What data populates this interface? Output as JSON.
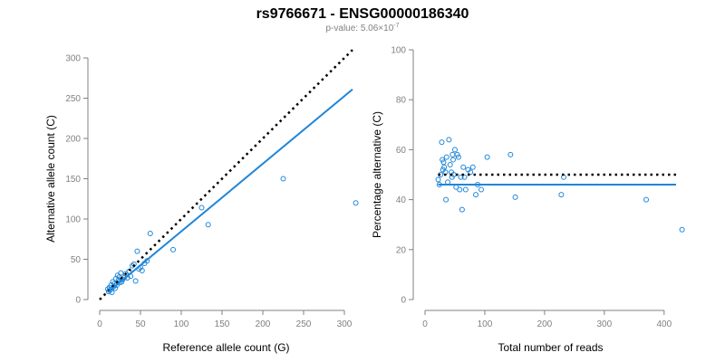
{
  "title": "rs9766671 - ENSG00000186340",
  "subtitle": {
    "prefix": "p-value: 5.06×10",
    "exponent": "-7"
  },
  "colors": {
    "points": "#1f86d9",
    "fit": "#1f86d9",
    "reference": "#000000",
    "axis": "#808080"
  },
  "chart_data": [
    {
      "type": "scatter",
      "xlabel": "Reference allele count (G)",
      "ylabel": "Alternative allele count (C)",
      "xlim": [
        0,
        310
      ],
      "ylim": [
        0,
        300
      ],
      "xticks": [
        0,
        50,
        100,
        150,
        200,
        250,
        300
      ],
      "yticks": [
        0,
        50,
        100,
        150,
        200,
        250,
        300
      ],
      "grid": false,
      "points": [
        [
          10,
          13
        ],
        [
          11,
          10
        ],
        [
          12,
          15
        ],
        [
          13,
          12
        ],
        [
          14,
          18
        ],
        [
          15,
          9
        ],
        [
          16,
          22
        ],
        [
          17,
          16
        ],
        [
          18,
          20
        ],
        [
          19,
          14
        ],
        [
          20,
          26
        ],
        [
          21,
          18
        ],
        [
          22,
          30
        ],
        [
          23,
          24
        ],
        [
          24,
          28
        ],
        [
          25,
          21
        ],
        [
          26,
          33
        ],
        [
          27,
          22
        ],
        [
          28,
          25
        ],
        [
          30,
          27
        ],
        [
          32,
          32
        ],
        [
          34,
          27
        ],
        [
          36,
          35
        ],
        [
          38,
          29
        ],
        [
          40,
          42
        ],
        [
          42,
          44
        ],
        [
          44,
          23
        ],
        [
          46,
          60
        ],
        [
          48,
          38
        ],
        [
          50,
          40
        ],
        [
          52,
          36
        ],
        [
          55,
          45
        ],
        [
          58,
          48
        ],
        [
          62,
          82
        ],
        [
          90,
          62
        ],
        [
          125,
          114
        ],
        [
          133,
          93
        ],
        [
          225,
          150
        ],
        [
          314,
          120
        ]
      ],
      "reference_line": {
        "from": [
          0,
          0
        ],
        "to": [
          310,
          310
        ],
        "style": "dotted"
      },
      "fit_line": {
        "from": [
          10,
          9
        ],
        "to": [
          310,
          261
        ],
        "style": "solid"
      }
    },
    {
      "type": "scatter",
      "xlabel": "Total number of reads",
      "ylabel": "Percentage alternative (C)",
      "xlim": [
        0,
        420
      ],
      "ylim": [
        0,
        100
      ],
      "xticks": [
        0,
        100,
        200,
        300,
        400
      ],
      "yticks": [
        0,
        20,
        40,
        60,
        80,
        100
      ],
      "grid": false,
      "points": [
        [
          22,
          48
        ],
        [
          24,
          46
        ],
        [
          26,
          50
        ],
        [
          28,
          63
        ],
        [
          29,
          56
        ],
        [
          30,
          52
        ],
        [
          31,
          55
        ],
        [
          32,
          53
        ],
        [
          34,
          51
        ],
        [
          35,
          40
        ],
        [
          36,
          57
        ],
        [
          38,
          47
        ],
        [
          40,
          64
        ],
        [
          42,
          54
        ],
        [
          44,
          51
        ],
        [
          45,
          49
        ],
        [
          46,
          58
        ],
        [
          47,
          56
        ],
        [
          48,
          50
        ],
        [
          50,
          60
        ],
        [
          52,
          45
        ],
        [
          54,
          58
        ],
        [
          56,
          57
        ],
        [
          58,
          44
        ],
        [
          60,
          49
        ],
        [
          62,
          36
        ],
        [
          64,
          53
        ],
        [
          66,
          49
        ],
        [
          68,
          44
        ],
        [
          72,
          52
        ],
        [
          76,
          51
        ],
        [
          80,
          53
        ],
        [
          85,
          42
        ],
        [
          88,
          46
        ],
        [
          94,
          44
        ],
        [
          104,
          57
        ],
        [
          143,
          58
        ],
        [
          151,
          41
        ],
        [
          232,
          49
        ],
        [
          228,
          42
        ],
        [
          370,
          40
        ],
        [
          430,
          28
        ]
      ],
      "reference_line": {
        "y": 50,
        "style": "dotted"
      },
      "fit_line": {
        "y": 46,
        "style": "solid"
      }
    }
  ]
}
